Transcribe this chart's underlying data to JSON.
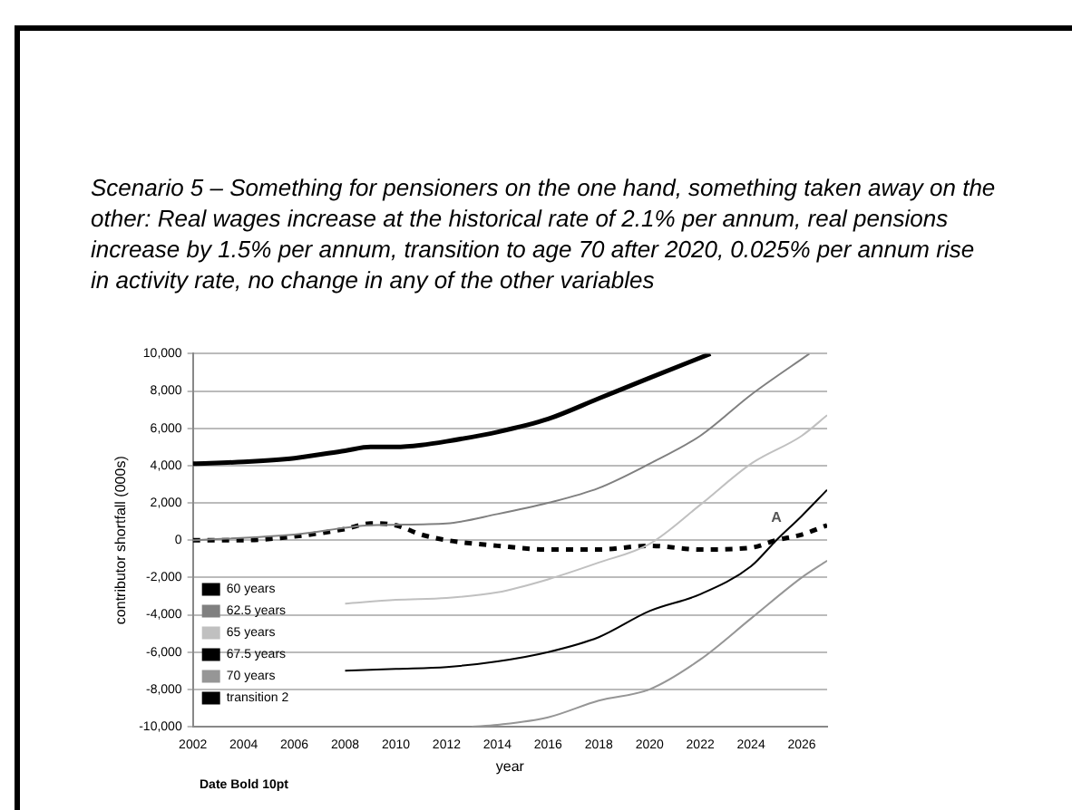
{
  "chart_data": {
    "type": "line",
    "title": "Scenario 5 – Something for pensioners on the one hand, something taken away on the other: Real wages increase at the historical rate of 2.1% per annum, real pensions increase by 1.5% per annum, transition to age 70 after 2020, 0.025% per annum rise in activity rate, no change in any of the other variables",
    "xlabel": "year",
    "ylabel": "contributor shortfall (000s)",
    "xlim": [
      2002,
      2027
    ],
    "xticks": [
      2002,
      2004,
      2006,
      2008,
      2010,
      2012,
      2014,
      2016,
      2018,
      2020,
      2022,
      2024,
      2026
    ],
    "ylim": [
      -10000,
      10000
    ],
    "yticks": [
      {
        "value": -10000,
        "label": "-10,000"
      },
      {
        "value": -8000,
        "label": "-8,000"
      },
      {
        "value": -6000,
        "label": "-6,000"
      },
      {
        "value": -4000,
        "label": "-4,000"
      },
      {
        "value": -2000,
        "label": "-2,000"
      },
      0,
      {
        "value": 2000,
        "label": "2,000"
      },
      {
        "value": 4000,
        "label": "4,000"
      },
      {
        "value": 6000,
        "label": "6,000"
      },
      {
        "value": 8000,
        "label": "8,000"
      },
      {
        "value": 10000,
        "label": "10,000"
      }
    ],
    "grid": "y",
    "legend": "bottom left",
    "marker": "none",
    "series": [
      {
        "name": "60 years",
        "color": "#000000",
        "line_style": "solid",
        "x": [
          2002,
          2004,
          2006,
          2008,
          2009,
          2010,
          2011,
          2012,
          2014,
          2016,
          2018,
          2020,
          2022.4
        ],
        "values": [
          4100,
          4200,
          4400,
          4800,
          5000,
          5000,
          5100,
          5300,
          5800,
          6500,
          7600,
          8700,
          10000
        ]
      },
      {
        "name": "62.5 years",
        "color": "#808080",
        "line_style": "solid",
        "x": [
          2002,
          2006,
          2009,
          2012,
          2014,
          2016,
          2018,
          2020,
          2022,
          2024,
          2026.3
        ],
        "values": [
          0,
          300,
          800,
          900,
          1400,
          2000,
          2800,
          4100,
          5600,
          7800,
          10000
        ]
      },
      {
        "name": "65 years",
        "color": "#c0c0c0",
        "line_style": "solid",
        "x": [
          2008,
          2010,
          2012,
          2014,
          2016,
          2018,
          2020,
          2022,
          2024,
          2026,
          2027
        ],
        "values": [
          -3400,
          -3200,
          -3100,
          -2800,
          -2100,
          -1200,
          -200,
          1900,
          4100,
          5600,
          6700
        ]
      },
      {
        "name": "67.5 years",
        "color": "#000000",
        "line_style": "solid",
        "x": [
          2008,
          2010,
          2012,
          2014,
          2016,
          2018,
          2020,
          2022,
          2024,
          2025,
          2026,
          2027
        ],
        "values": [
          -7000,
          -6900,
          -6800,
          -6500,
          -6000,
          -5200,
          -3800,
          -2900,
          -1400,
          0,
          1300,
          2700
        ]
      },
      {
        "name": "70 years",
        "color": "#969696",
        "line_style": "solid",
        "x": [
          2013,
          2014,
          2016,
          2018,
          2020,
          2022,
          2024,
          2026,
          2027
        ],
        "values": [
          -10000,
          -9900,
          -9500,
          -8600,
          -8000,
          -6400,
          -4200,
          -2000,
          -1100
        ]
      },
      {
        "name": "transition 2",
        "color": "#000000",
        "line_style": "dashed",
        "x": [
          2002,
          2004,
          2006,
          2008,
          2009,
          2010,
          2011,
          2012,
          2014,
          2016,
          2018,
          2020,
          2022,
          2024,
          2025,
          2026,
          2027
        ],
        "values": [
          0,
          0,
          200,
          600,
          900,
          800,
          300,
          0,
          -300,
          -500,
          -500,
          -300,
          -500,
          -400,
          0,
          300,
          800
        ]
      }
    ],
    "annotations": [
      {
        "text": "A",
        "x": 2025,
        "y": 600
      },
      "Date Bold 10pt"
    ]
  }
}
